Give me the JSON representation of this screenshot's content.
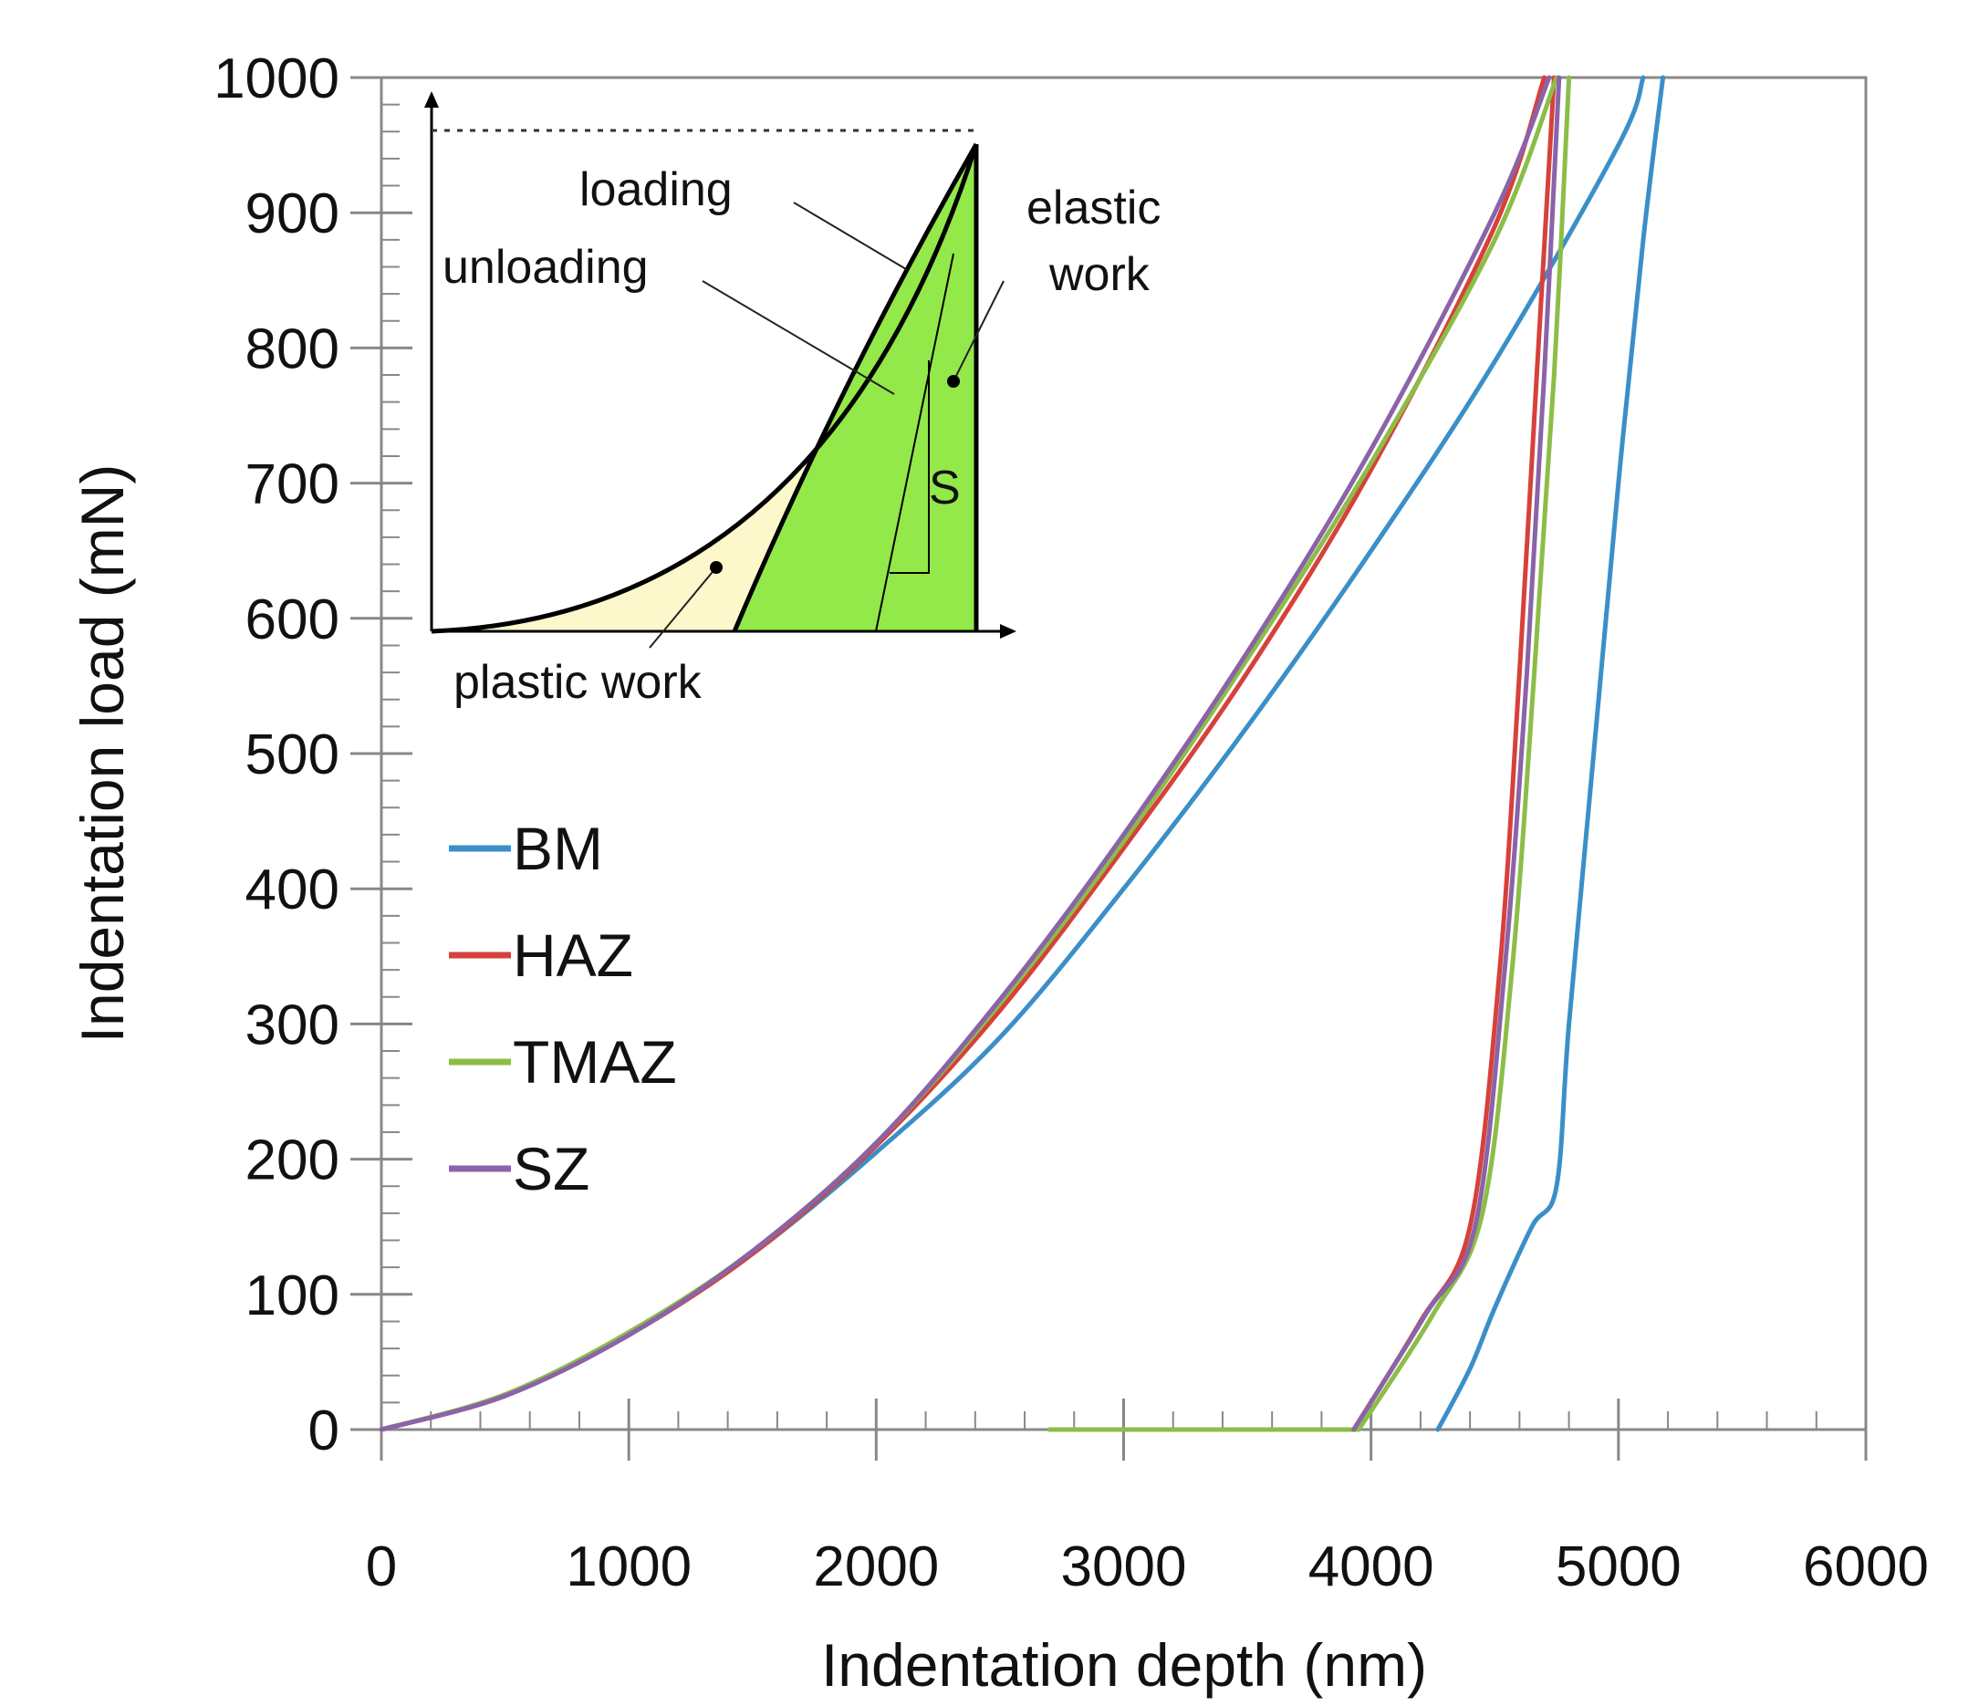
{
  "chart_data": {
    "type": "line",
    "xlabel": "Indentation depth (nm)",
    "ylabel": "Indentation load (mN)",
    "xlim": [
      0,
      6000
    ],
    "ylim": [
      0,
      1000
    ],
    "xticks": [
      0,
      1000,
      2000,
      3000,
      4000,
      5000,
      6000
    ],
    "yticks": [
      0,
      100,
      200,
      300,
      400,
      500,
      600,
      700,
      800,
      900,
      1000
    ],
    "x_minor_step": 200,
    "y_minor_step": 20,
    "grid": false,
    "legend": {
      "placement": "left-middle",
      "entries": [
        "BM",
        "HAZ",
        "TMAZ",
        "SZ"
      ]
    },
    "colors": {
      "BM": "#3b8fc8",
      "HAZ": "#d6413a",
      "TMAZ": "#8cbd47",
      "SZ": "#8a63a8"
    },
    "series": [
      {
        "name": "BM",
        "loading": {
          "x": [
            0,
            500,
            1000,
            1500,
            2000,
            2500,
            3000,
            3500,
            4000,
            4500,
            5000,
            5100
          ],
          "y": [
            0,
            25,
            70,
            130,
            205,
            290,
            400,
            520,
            650,
            790,
            950,
            1000
          ]
        },
        "unloading": {
          "x": [
            5180,
            5100,
            5000,
            4900,
            4800,
            4750,
            4650,
            4500,
            4400,
            4270
          ],
          "y": [
            1000,
            880,
            700,
            500,
            300,
            180,
            150,
            90,
            45,
            0
          ]
        }
      },
      {
        "name": "HAZ",
        "loading": {
          "x": [
            0,
            500,
            1000,
            1500,
            2000,
            2500,
            3000,
            3500,
            4000,
            4500,
            4700
          ],
          "y": [
            0,
            25,
            70,
            130,
            210,
            310,
            430,
            560,
            710,
            890,
            1000
          ]
        },
        "unloading": {
          "x": [
            4740,
            4670,
            4600,
            4520,
            4400,
            4200,
            3930
          ],
          "y": [
            1000,
            780,
            560,
            340,
            150,
            80,
            0
          ]
        }
      },
      {
        "name": "TMAZ",
        "loading": {
          "x": [
            0,
            500,
            1000,
            1500,
            2000,
            2500,
            3000,
            3500,
            4000,
            4500,
            4750
          ],
          "y": [
            0,
            26,
            72,
            132,
            212,
            315,
            435,
            570,
            715,
            880,
            1000
          ]
        },
        "unloading": {
          "x": [
            4800,
            4740,
            4660,
            4570,
            4450,
            4250,
            3950
          ],
          "y": [
            1000,
            780,
            560,
            340,
            160,
            85,
            0
          ]
        },
        "baseline": {
          "x": [
            2700,
            3950
          ],
          "y": [
            0,
            0
          ]
        }
      },
      {
        "name": "SZ",
        "loading": {
          "x": [
            0,
            500,
            1000,
            1500,
            2000,
            2500,
            3000,
            3500,
            4000,
            4500,
            4720
          ],
          "y": [
            0,
            25,
            70,
            132,
            212,
            318,
            440,
            575,
            725,
            900,
            1000
          ]
        },
        "unloading": {
          "x": [
            4760,
            4700,
            4630,
            4540,
            4420,
            4220,
            3930
          ],
          "y": [
            1000,
            780,
            560,
            340,
            150,
            85,
            0
          ]
        }
      }
    ],
    "inset": {
      "labels": {
        "loading": "loading",
        "unloading": "unloading",
        "elastic": [
          "elastic",
          "work"
        ],
        "stiffness": "S",
        "plastic": "plastic work"
      },
      "colors": {
        "plastic_fill": "#fcf8cc",
        "elastic_fill": "#93e84a",
        "curve": "#000000"
      }
    }
  }
}
